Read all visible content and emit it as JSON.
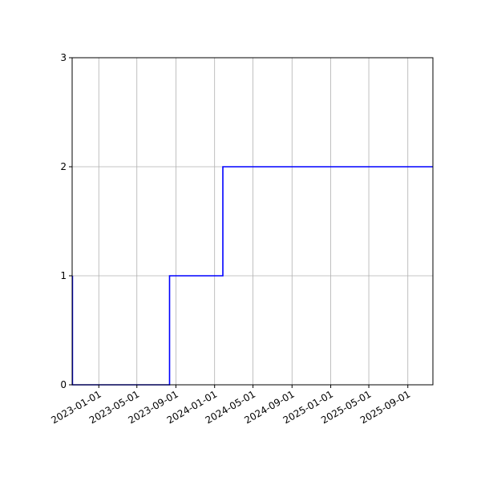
{
  "chart_data": {
    "type": "line",
    "title": "",
    "xlabel": "",
    "ylabel": "",
    "x_type": "date",
    "xlim": [
      "2022-10-09",
      "2025-11-19"
    ],
    "ylim": [
      0,
      3
    ],
    "grid": true,
    "line_style": "step",
    "x_ticks": [
      "2023-01-01",
      "2023-05-01",
      "2023-09-01",
      "2024-01-01",
      "2024-05-01",
      "2024-09-01",
      "2025-01-01",
      "2025-05-01",
      "2025-09-01"
    ],
    "y_ticks": [
      0,
      1,
      2,
      3
    ],
    "series": [
      {
        "color": "#0000ff",
        "points": [
          {
            "x": "2022-10-10",
            "y": 1
          },
          {
            "x": "2022-10-10",
            "y": 0
          },
          {
            "x": "2023-08-12",
            "y": 0
          },
          {
            "x": "2023-08-12",
            "y": 1
          },
          {
            "x": "2024-01-27",
            "y": 1
          },
          {
            "x": "2024-01-27",
            "y": 2
          },
          {
            "x": "2025-11-19",
            "y": 2
          }
        ]
      }
    ]
  }
}
